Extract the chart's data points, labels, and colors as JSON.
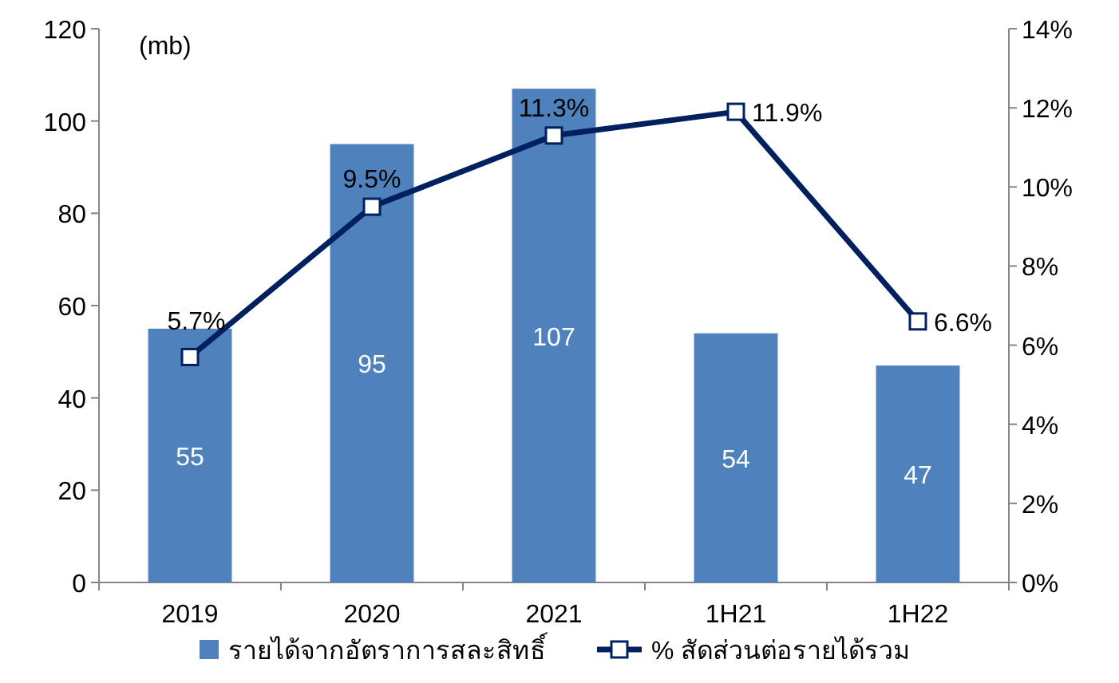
{
  "chart_data": {
    "type": "bar",
    "categories": [
      "2019",
      "2020",
      "2021",
      "1H21",
      "1H22"
    ],
    "series": [
      {
        "name": "รายได้จากอัตราการสละสิทธิ์",
        "color": "#4f81bd",
        "values": [
          55,
          95,
          107,
          54,
          47
        ],
        "value_labels": [
          "55",
          "95",
          "107",
          "54",
          "47"
        ]
      },
      {
        "name": "% สัดส่วนต่อรายได้รวม",
        "type": "line",
        "axis": "y2",
        "color": "#002060",
        "marker": "square",
        "values": [
          5.7,
          9.5,
          11.3,
          11.9,
          6.6
        ],
        "value_labels": [
          "5.7%",
          "9.5%",
          "11.3%",
          "11.9%",
          "6.6%"
        ]
      }
    ],
    "ylim": [
      0,
      120
    ],
    "yticks": [
      0,
      20,
      40,
      60,
      80,
      100,
      120
    ],
    "y2lim": [
      0,
      14
    ],
    "y2ticks": [
      {
        "value": 0,
        "label": "0%"
      },
      {
        "value": 2,
        "label": "2%"
      },
      {
        "value": 4,
        "label": "4%"
      },
      {
        "value": 6,
        "label": "6%"
      },
      {
        "value": 8,
        "label": "8%"
      },
      {
        "value": 10,
        "label": "10%"
      },
      {
        "value": 12,
        "label": "12%"
      },
      {
        "value": 14,
        "label": "14%"
      }
    ],
    "annotations": [
      "(mb)"
    ],
    "legend": "bottom",
    "grid": false
  }
}
